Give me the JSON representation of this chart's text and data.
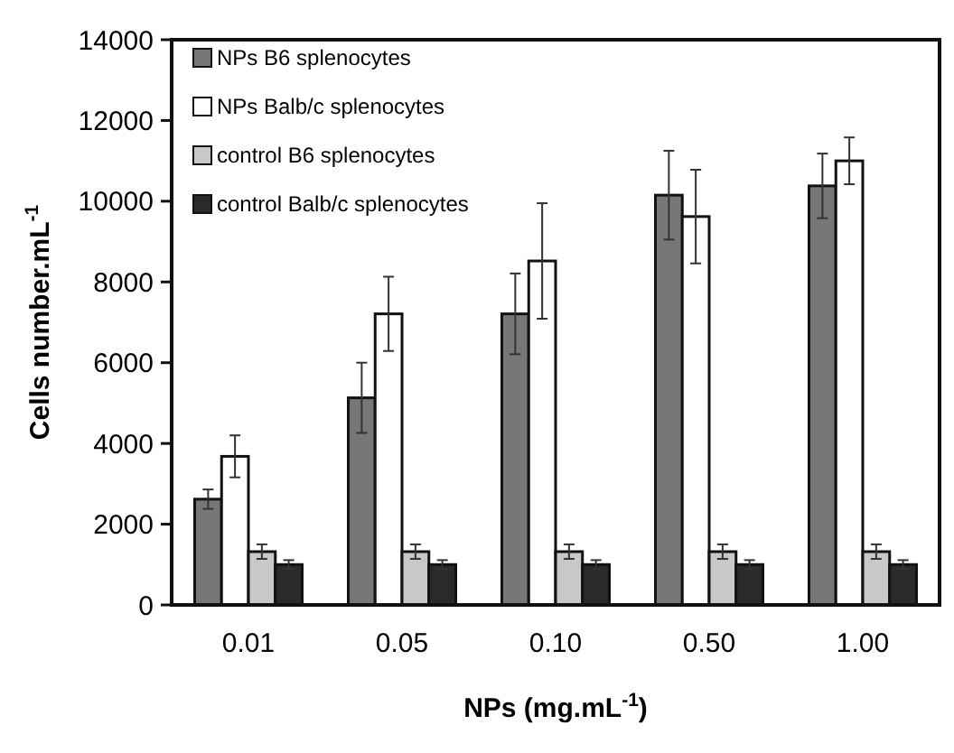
{
  "chart_data": {
    "type": "bar",
    "xlabel": "NPs (mg.mL$^{-1}$)",
    "ylabel": "Cells number.mL$^{-1}$",
    "categories": [
      "0.01",
      "0.05",
      "0.10",
      "0.50",
      "1.00"
    ],
    "ylim": [
      0,
      14000
    ],
    "yticks": [
      0,
      2000,
      4000,
      6000,
      8000,
      10000,
      12000,
      14000
    ],
    "grid": false,
    "legend": "top left",
    "series": [
      {
        "name": "NPs B6 splenocytes",
        "color": "#777777",
        "values": [
          2620,
          5130,
          7210,
          10150,
          10380
        ],
        "errors": [
          240,
          870,
          1000,
          1100,
          800
        ]
      },
      {
        "name": "NPs Balb/c splenocytes",
        "color": "#ffffff",
        "values": [
          3680,
          7210,
          8520,
          9620,
          11000
        ],
        "errors": [
          520,
          920,
          1430,
          1160,
          580
        ]
      },
      {
        "name": "control B6 splenocytes",
        "color": "#c8c8c8",
        "values": [
          1320,
          1320,
          1320,
          1320,
          1320
        ],
        "errors": [
          180,
          180,
          180,
          180,
          180
        ]
      },
      {
        "name": "control Balb/c splenocytes",
        "color": "#2a2a2a",
        "values": [
          1000,
          1000,
          1000,
          1000,
          1000
        ],
        "errors": [
          110,
          110,
          110,
          110,
          110
        ]
      }
    ]
  }
}
